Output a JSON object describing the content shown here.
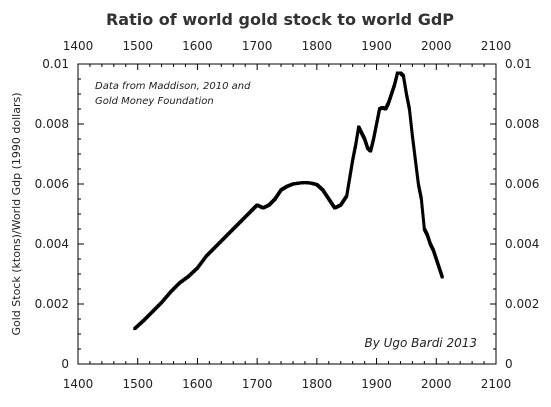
{
  "chart_data": {
    "type": "scatter",
    "title": "Ratio of world gold stock to world GdP",
    "xlabel": "",
    "ylabel": "Gold Stock (ktons)/World Gdp (1990 dollars)",
    "xlim": [
      1400,
      2100
    ],
    "ylim": [
      0,
      0.01
    ],
    "x_ticks": [
      "1400",
      "1500",
      "1600",
      "1700",
      "1800",
      "1900",
      "2000",
      "2100"
    ],
    "y_ticks": [
      "0",
      "0.002",
      "0.004",
      "0.006",
      "0.008",
      "0.01"
    ],
    "x_axes": [
      "top",
      "bottom"
    ],
    "y_axes": [
      "left",
      "right"
    ],
    "grid": false,
    "annotations": [
      {
        "text": "Data from Maddison, 2010 and",
        "position": "top-left"
      },
      {
        "text": "Gold Money Foundation",
        "position": "top-left"
      },
      {
        "text": "By Ugo Bardi 2013",
        "position": "bottom-right"
      }
    ],
    "series": [
      {
        "color": "#000000",
        "x": [
          1495,
          1510,
          1525,
          1540,
          1555,
          1570,
          1585,
          1600,
          1615,
          1630,
          1645,
          1660,
          1675,
          1690,
          1700,
          1710,
          1720,
          1730,
          1740,
          1750,
          1760,
          1770,
          1780,
          1790,
          1800,
          1810,
          1820,
          1830,
          1840,
          1850,
          1855,
          1860,
          1865,
          1870,
          1875,
          1880,
          1885,
          1890,
          1895,
          1900,
          1905,
          1910,
          1915,
          1920,
          1925,
          1930,
          1935,
          1940,
          1945,
          1950,
          1955,
          1960,
          1965,
          1970,
          1975,
          1980,
          1985,
          1990,
          1995,
          2000,
          2005,
          2010
        ],
        "y": [
          0.00118,
          0.00145,
          0.00175,
          0.00205,
          0.0024,
          0.0027,
          0.00292,
          0.0032,
          0.0036,
          0.0039,
          0.0042,
          0.0045,
          0.0048,
          0.0051,
          0.0053,
          0.0052,
          0.0053,
          0.0055,
          0.0058,
          0.00592,
          0.006,
          0.00603,
          0.00605,
          0.00603,
          0.00598,
          0.0058,
          0.0055,
          0.0052,
          0.0053,
          0.0056,
          0.0062,
          0.0068,
          0.0073,
          0.0079,
          0.0077,
          0.0075,
          0.0072,
          0.0071,
          0.0075,
          0.008,
          0.0085,
          0.00855,
          0.0085,
          0.0087,
          0.009,
          0.0093,
          0.0097,
          0.0097,
          0.0096,
          0.009,
          0.0085,
          0.0076,
          0.0068,
          0.006,
          0.0055,
          0.0045,
          0.0043,
          0.004,
          0.0038,
          0.0035,
          0.0032,
          0.0029
        ]
      }
    ]
  }
}
